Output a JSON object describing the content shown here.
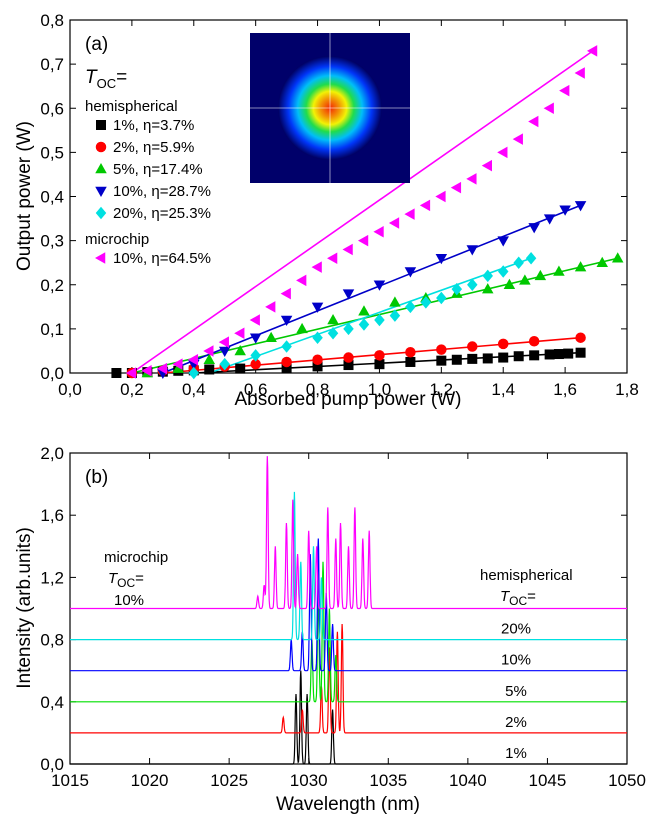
{
  "chart_data": [
    {
      "id": "a",
      "type": "scatter",
      "panel_label": "(a)",
      "xlabel": "Absorbed pump power (W)",
      "ylabel": "Output power (W)",
      "xlim": [
        0.0,
        1.8
      ],
      "ylim": [
        0.0,
        0.8
      ],
      "xticks": [
        "0,0",
        "0,2",
        "0,4",
        "0,6",
        "0,8",
        "1,0",
        "1,2",
        "1,4",
        "1,6",
        "1,8"
      ],
      "yticks": [
        "0,0",
        "0,1",
        "0,2",
        "0,3",
        "0,4",
        "0,5",
        "0,6",
        "0,7",
        "0,8"
      ],
      "grid": false,
      "legend_placement": "upper-left",
      "legend": {
        "header_main": "T",
        "header_sub": "OC",
        "header_eq": "=",
        "group1": "hemispherical",
        "group2": "microchip"
      },
      "inset": "beam profile image (top-center)",
      "series": [
        {
          "name": "1%, η=3.7%",
          "color": "#000000",
          "marker": "square",
          "x": [
            0.15,
            0.2,
            0.25,
            0.3,
            0.35,
            0.4,
            0.45,
            0.55,
            0.7,
            0.8,
            0.9,
            1.0,
            1.1,
            1.2,
            1.25,
            1.3,
            1.35,
            1.4,
            1.45,
            1.5,
            1.55,
            1.58,
            1.61,
            1.65
          ],
          "y": [
            0.0,
            0.0,
            0.002,
            0.003,
            0.005,
            0.006,
            0.008,
            0.01,
            0.012,
            0.015,
            0.018,
            0.02,
            0.025,
            0.028,
            0.03,
            0.032,
            0.033,
            0.035,
            0.038,
            0.04,
            0.042,
            0.043,
            0.044,
            0.046
          ],
          "fit": [
            [
              0.4,
              0.0
            ],
            [
              1.65,
              0.046
            ]
          ]
        },
        {
          "name": "2%, η=5.9%",
          "color": "#ff0000",
          "marker": "circle",
          "x": [
            0.2,
            0.3,
            0.4,
            0.5,
            0.6,
            0.7,
            0.8,
            0.9,
            1.0,
            1.1,
            1.2,
            1.3,
            1.4,
            1.5,
            1.65
          ],
          "y": [
            0.0,
            0.005,
            0.01,
            0.015,
            0.02,
            0.025,
            0.03,
            0.035,
            0.04,
            0.047,
            0.053,
            0.06,
            0.066,
            0.072,
            0.08
          ],
          "fit": [
            [
              0.3,
              0.0
            ],
            [
              1.65,
              0.08
            ]
          ]
        },
        {
          "name": "5%, η=17.4%",
          "color": "#00c800",
          "marker": "triangle-up",
          "x": [
            0.25,
            0.35,
            0.45,
            0.55,
            0.65,
            0.75,
            0.85,
            0.95,
            1.05,
            1.15,
            1.25,
            1.35,
            1.42,
            1.47,
            1.52,
            1.58,
            1.65,
            1.72,
            1.77
          ],
          "y": [
            0.0,
            0.01,
            0.03,
            0.05,
            0.08,
            0.1,
            0.12,
            0.14,
            0.16,
            0.17,
            0.18,
            0.19,
            0.2,
            0.21,
            0.22,
            0.23,
            0.24,
            0.25,
            0.26
          ],
          "fit": [
            [
              0.2,
              0.0
            ],
            [
              1.77,
              0.26
            ]
          ]
        },
        {
          "name": "10%, η=28.7%",
          "color": "#0000c8",
          "marker": "triangle-down",
          "x": [
            0.3,
            0.4,
            0.5,
            0.6,
            0.7,
            0.8,
            0.9,
            1.0,
            1.1,
            1.2,
            1.3,
            1.4,
            1.5,
            1.55,
            1.6,
            1.65
          ],
          "y": [
            0.0,
            0.02,
            0.05,
            0.08,
            0.12,
            0.15,
            0.18,
            0.2,
            0.23,
            0.26,
            0.28,
            0.3,
            0.33,
            0.35,
            0.37,
            0.38
          ],
          "fit": [
            [
              0.3,
              0.0
            ],
            [
              1.65,
              0.38
            ]
          ]
        },
        {
          "name": "20%, η=25.3%",
          "color": "#00e0e0",
          "marker": "diamond",
          "x": [
            0.4,
            0.5,
            0.6,
            0.7,
            0.8,
            0.85,
            0.9,
            0.95,
            1.0,
            1.05,
            1.1,
            1.15,
            1.2,
            1.25,
            1.3,
            1.35,
            1.4,
            1.45,
            1.49
          ],
          "y": [
            0.0,
            0.02,
            0.04,
            0.06,
            0.08,
            0.09,
            0.1,
            0.11,
            0.12,
            0.13,
            0.15,
            0.16,
            0.17,
            0.19,
            0.2,
            0.22,
            0.23,
            0.25,
            0.26
          ],
          "fit": [
            [
              0.45,
              0.0
            ],
            [
              1.49,
              0.26
            ]
          ]
        },
        {
          "name": "10%, η=64.5%",
          "color": "#ff00ff",
          "marker": "triangle-left",
          "x": [
            0.2,
            0.25,
            0.3,
            0.35,
            0.4,
            0.45,
            0.5,
            0.55,
            0.6,
            0.65,
            0.7,
            0.75,
            0.8,
            0.85,
            0.9,
            0.95,
            1.0,
            1.05,
            1.1,
            1.15,
            1.2,
            1.25,
            1.3,
            1.35,
            1.4,
            1.45,
            1.5,
            1.55,
            1.6,
            1.65,
            1.69
          ],
          "y": [
            0.0,
            0.005,
            0.01,
            0.02,
            0.03,
            0.05,
            0.07,
            0.09,
            0.12,
            0.15,
            0.18,
            0.21,
            0.24,
            0.26,
            0.28,
            0.3,
            0.32,
            0.34,
            0.36,
            0.38,
            0.4,
            0.42,
            0.44,
            0.47,
            0.5,
            0.53,
            0.57,
            0.6,
            0.64,
            0.68,
            0.73
          ],
          "fit": [
            [
              0.2,
              0.0
            ],
            [
              1.69,
              0.73
            ]
          ]
        }
      ]
    },
    {
      "id": "b",
      "type": "line",
      "panel_label": "(b)",
      "xlabel": "Wavelength (nm)",
      "ylabel": "Intensity (arb.units)",
      "xlim": [
        1015,
        1050
      ],
      "ylim": [
        0.0,
        2.0
      ],
      "xticks": [
        "1015",
        "1020",
        "1025",
        "1030",
        "1035",
        "1040",
        "1045",
        "1050"
      ],
      "yticks": [
        "0,0",
        "0,4",
        "0,8",
        "1,2",
        "1,6",
        "2,0"
      ],
      "grid": false,
      "annotations": {
        "microchip_title": "microchip",
        "microchip_toc_main": "T",
        "microchip_toc_sub": "OC",
        "microchip_toc_eq": "=",
        "microchip_value": "10%",
        "hemi_title": "hemispherical",
        "hemi_toc_main": "T",
        "hemi_toc_sub": "OC",
        "hemi_toc_eq": "="
      },
      "series": [
        {
          "name": "1%",
          "color": "#000000",
          "baseline": 0.0,
          "peaks": [
            [
              1029.2,
              0.45
            ],
            [
              1029.5,
              0.6
            ],
            [
              1029.9,
              0.45
            ],
            [
              1031.5,
              0.35
            ]
          ]
        },
        {
          "name": "2%",
          "color": "#ff0000",
          "baseline": 0.2,
          "peaks": [
            [
              1028.4,
              0.1
            ],
            [
              1029.6,
              0.15
            ],
            [
              1030.8,
              0.3
            ],
            [
              1031.3,
              0.55
            ],
            [
              1031.8,
              0.65
            ],
            [
              1032.1,
              0.7
            ]
          ]
        },
        {
          "name": "5%",
          "color": "#00e000",
          "baseline": 0.4,
          "peaks": [
            [
              1030.2,
              0.4
            ],
            [
              1030.6,
              0.7
            ],
            [
              1030.9,
              0.9
            ],
            [
              1031.3,
              0.6
            ],
            [
              1031.7,
              0.3
            ]
          ]
        },
        {
          "name": "10%",
          "color": "#0000ff",
          "baseline": 0.6,
          "peaks": [
            [
              1028.9,
              0.2
            ],
            [
              1029.6,
              0.25
            ],
            [
              1030.1,
              0.75
            ],
            [
              1030.6,
              0.85
            ],
            [
              1031.1,
              0.5
            ],
            [
              1031.5,
              0.3
            ]
          ]
        },
        {
          "name": "20%",
          "color": "#00e0e0",
          "baseline": 0.8,
          "peaks": [
            [
              1029.1,
              0.95
            ],
            [
              1029.5,
              0.5
            ],
            [
              1030.3,
              0.6
            ],
            [
              1030.8,
              0.4
            ]
          ]
        },
        {
          "name": "10%",
          "color": "#ff00ff",
          "baseline": 1.0,
          "peaks": [
            [
              1026.8,
              0.08
            ],
            [
              1027.2,
              0.15
            ],
            [
              1027.4,
              0.98
            ],
            [
              1027.9,
              0.4
            ],
            [
              1028.6,
              0.55
            ],
            [
              1029.0,
              0.7
            ],
            [
              1029.3,
              0.35
            ],
            [
              1030.0,
              0.5
            ],
            [
              1030.5,
              0.4
            ],
            [
              1031.2,
              0.65
            ],
            [
              1031.7,
              0.45
            ],
            [
              1032.0,
              0.55
            ],
            [
              1032.5,
              0.4
            ],
            [
              1032.9,
              0.65
            ],
            [
              1033.4,
              0.45
            ],
            [
              1033.8,
              0.5
            ]
          ]
        }
      ]
    }
  ]
}
